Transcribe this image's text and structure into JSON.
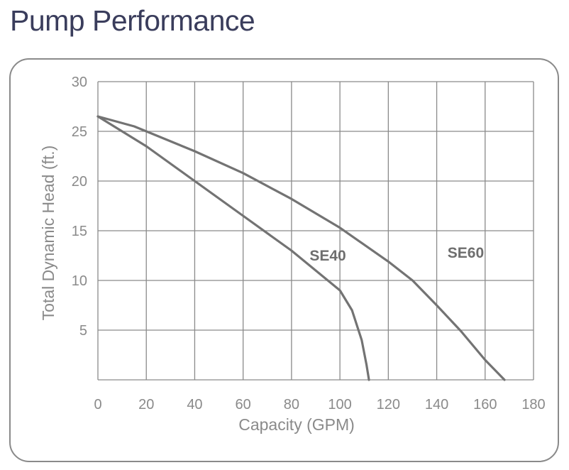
{
  "page": {
    "title": "Pump Performance"
  },
  "colors": {
    "title": "#3a3d5c",
    "grid": "#8a8a8a",
    "curve": "#737373",
    "text": "#8a8a8a"
  },
  "chart_data": {
    "type": "line",
    "xlabel": "Capacity (GPM)",
    "ylabel": "Total Dynamic Head (ft.)",
    "xlim": [
      0,
      180
    ],
    "ylim": [
      0,
      30
    ],
    "x_grid": [
      0,
      20,
      40,
      60,
      80,
      100,
      120,
      140,
      160,
      180
    ],
    "y_grid": [
      0,
      5,
      10,
      15,
      20,
      25,
      30
    ],
    "x_tick_labels": [
      "0",
      "20",
      "40",
      "60",
      "80",
      "100",
      "120",
      "140",
      "160",
      "180"
    ],
    "y_tick_labels": [
      "5",
      "10",
      "15",
      "20",
      "25",
      "30"
    ],
    "grid": true,
    "series": [
      {
        "name": "SE40",
        "points": [
          [
            0,
            26.5
          ],
          [
            20,
            23.5
          ],
          [
            40,
            20
          ],
          [
            60,
            16.5
          ],
          [
            80,
            13
          ],
          [
            100,
            9
          ],
          [
            105,
            7
          ],
          [
            109,
            4
          ],
          [
            111,
            1.5
          ],
          [
            112,
            0
          ]
        ]
      },
      {
        "name": "SE60",
        "points": [
          [
            0,
            26.5
          ],
          [
            15,
            25.5
          ],
          [
            40,
            23
          ],
          [
            60,
            20.8
          ],
          [
            80,
            18.2
          ],
          [
            100,
            15.3
          ],
          [
            120,
            11.9
          ],
          [
            130,
            10
          ],
          [
            140,
            7.5
          ],
          [
            150,
            4.9
          ],
          [
            160,
            2
          ],
          [
            168,
            0
          ]
        ]
      }
    ]
  }
}
